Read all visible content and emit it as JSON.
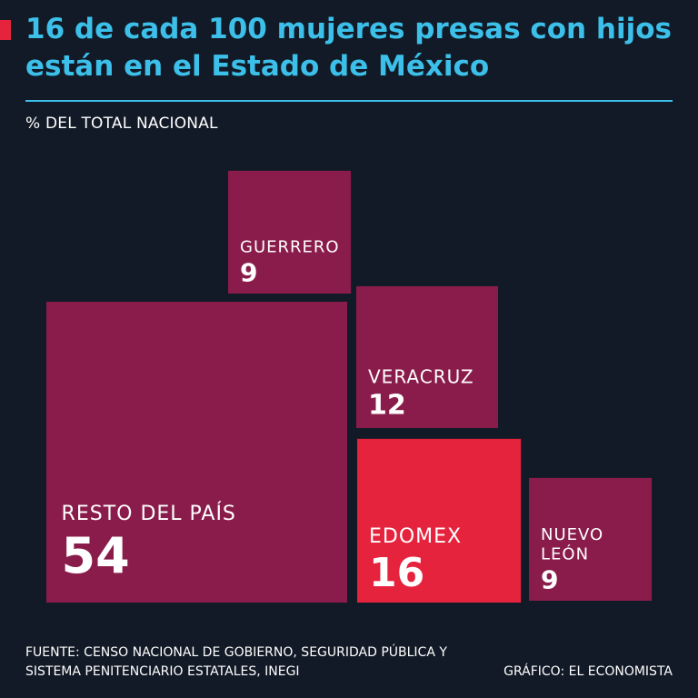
{
  "header": {
    "title": "16 de cada 100 mujeres presas con hijos están en el Estado de México",
    "subtitle": "% DEL TOTAL NACIONAL"
  },
  "chart_data": {
    "type": "treemap",
    "title": "16 de cada 100 mujeres presas con hijos están en el Estado de México",
    "unit": "% del total nacional",
    "categories": [
      "Resto del país",
      "Edomex",
      "Veracruz",
      "Guerrero",
      "Nuevo León"
    ],
    "blocks": [
      {
        "key": "resto",
        "label": "RESTO DEL PAÍS",
        "value": 54,
        "color": "#8a1c4b"
      },
      {
        "key": "edomex",
        "label": "EDOMEX",
        "value": 16,
        "color": "#e5233d"
      },
      {
        "key": "veracruz",
        "label": "VERACRUZ",
        "value": 12,
        "color": "#8a1c4b"
      },
      {
        "key": "guerrero",
        "label": "GUERRERO",
        "value": 9,
        "color": "#8a1c4b"
      },
      {
        "key": "nuevoleon",
        "label": "NUEVO LEÓN",
        "value": 9,
        "color": "#8a1c4b"
      }
    ]
  },
  "footer": {
    "source": "FUENTE: CENSO NACIONAL DE GOBIERNO, SEGURIDAD PÚBLICA Y SISTEMA PENITENCIARIO ESTATALES, INEGI",
    "credit": "GRÁFICO: EL ECONOMISTA"
  }
}
